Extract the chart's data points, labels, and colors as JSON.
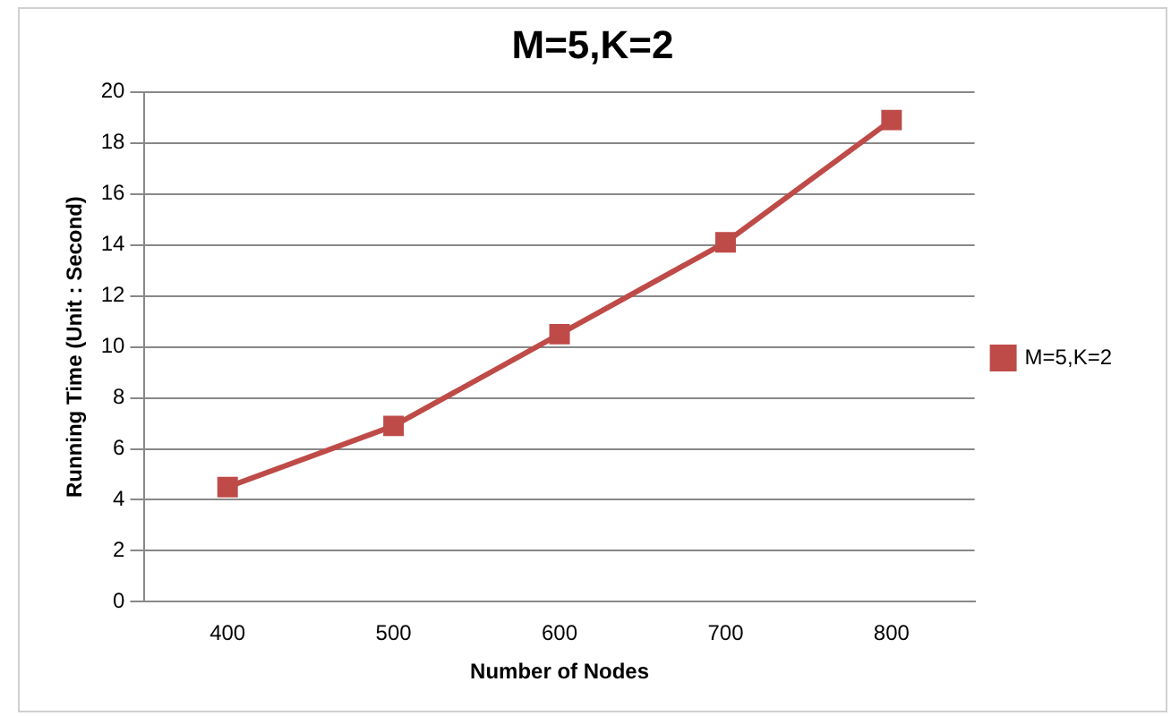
{
  "chart_data": {
    "type": "line",
    "title": "M=5,K=2",
    "xlabel": "Number of Nodes",
    "ylabel": "Running Time (Unit : Second)",
    "categories": [
      "400",
      "500",
      "600",
      "700",
      "800"
    ],
    "series": [
      {
        "name": "M=5,K=2",
        "color": "#be4b48",
        "values": [
          4.5,
          6.9,
          10.5,
          14.1,
          18.9
        ]
      }
    ],
    "ylim": [
      0,
      20
    ],
    "yticks": [
      0,
      2,
      4,
      6,
      8,
      10,
      12,
      14,
      16,
      18,
      20
    ],
    "grid": "y",
    "legend": "right",
    "marker": "square",
    "line_style": "solid"
  }
}
